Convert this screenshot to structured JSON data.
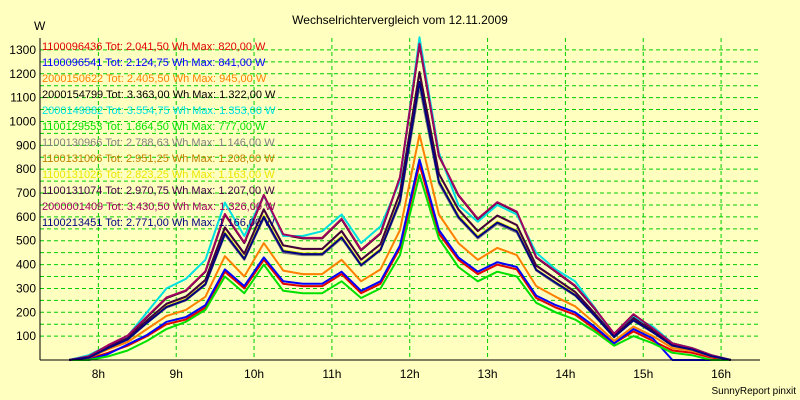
{
  "chart_data": {
    "type": "line",
    "title": "Wechselrichtervergleich vom 12.11.2009",
    "ylabel": "W",
    "ylim": [
      0,
      1350
    ],
    "xlim": [
      7.25,
      16.5
    ],
    "yticks": [
      100,
      150,
      200,
      250,
      300,
      350,
      400,
      450,
      500,
      550,
      600,
      650,
      700,
      750,
      800,
      850,
      900,
      950,
      1000,
      1050,
      1100,
      1150,
      1200,
      1250,
      1300
    ],
    "xticks": [
      {
        "value": 8,
        "label": "8h"
      },
      {
        "value": 9,
        "label": "9h"
      },
      {
        "value": 10,
        "label": "10h"
      },
      {
        "value": 11,
        "label": "11h"
      },
      {
        "value": 12,
        "label": "12h"
      },
      {
        "value": 13,
        "label": "13h"
      },
      {
        "value": 14,
        "label": "14h"
      },
      {
        "value": 15,
        "label": "15h"
      },
      {
        "value": 16,
        "label": "16h"
      }
    ],
    "grid": true,
    "legend_position": "top-left",
    "background_color": "#ffffc0",
    "grid_color": "#00cc00",
    "x": [
      7.625,
      7.875,
      8.125,
      8.375,
      8.625,
      8.875,
      9.125,
      9.375,
      9.625,
      9.875,
      10.125,
      10.375,
      10.625,
      10.875,
      11.125,
      11.375,
      11.625,
      11.875,
      12.125,
      12.375,
      12.625,
      12.875,
      13.125,
      13.375,
      13.625,
      13.875,
      14.125,
      14.375,
      14.625,
      14.875,
      15.125,
      15.375,
      15.625,
      15.875,
      16.125
    ],
    "series": [
      {
        "name": "1100096436 Tot: 2.041,50 Wh Max: 820,00 W",
        "color": "#e00000",
        "values": [
          0,
          5,
          30,
          60,
          100,
          150,
          170,
          220,
          370,
          300,
          420,
          320,
          310,
          310,
          360,
          280,
          320,
          470,
          820,
          530,
          420,
          360,
          400,
          380,
          260,
          220,
          190,
          130,
          70,
          120,
          80,
          40,
          30,
          10,
          0
        ]
      },
      {
        "name": "1100096541 Tot: 2.124,75 Wh Max: 841,00 W",
        "color": "#0000ff",
        "values": [
          0,
          0,
          25,
          65,
          105,
          160,
          180,
          230,
          380,
          310,
          430,
          330,
          320,
          320,
          370,
          290,
          330,
          480,
          841,
          545,
          430,
          370,
          410,
          390,
          270,
          230,
          200,
          140,
          70,
          130,
          90,
          0,
          0,
          0,
          0
        ]
      },
      {
        "name": "2000150622 Tot: 2.405,50 Wh Max: 945,00 W",
        "color": "#ff8000",
        "values": [
          0,
          10,
          45,
          75,
          130,
          185,
          210,
          265,
          435,
          350,
          490,
          375,
          360,
          360,
          420,
          330,
          380,
          545,
          945,
          610,
          490,
          420,
          470,
          440,
          310,
          265,
          225,
          155,
          80,
          140,
          100,
          50,
          40,
          15,
          0
        ]
      },
      {
        "name": "2000154799 Tot: 3.363,00 Wh Max: 1.322,00 W",
        "color": "#000000",
        "values": [
          0,
          15,
          60,
          100,
          180,
          260,
          290,
          370,
          610,
          490,
          690,
          525,
          510,
          510,
          590,
          460,
          530,
          765,
          1322,
          855,
          690,
          590,
          660,
          620,
          430,
          370,
          310,
          215,
          110,
          190,
          130,
          70,
          50,
          20,
          0
        ]
      },
      {
        "name": "2000149882 Tot: 3.554,75 Wh Max: 1.353,00 W",
        "color": "#00e0e0",
        "values": [
          0,
          20,
          60,
          100,
          200,
          300,
          340,
          420,
          660,
          520,
          690,
          520,
          520,
          540,
          610,
          490,
          560,
          750,
          1353,
          870,
          650,
          580,
          650,
          610,
          450,
          380,
          330,
          220,
          100,
          180,
          140,
          70,
          50,
          20,
          0
        ]
      },
      {
        "name": "1100129553 Tot: 1.864,50 Wh Max: 777,00 W",
        "color": "#00e000",
        "values": [
          0,
          0,
          15,
          40,
          80,
          130,
          160,
          210,
          350,
          280,
          400,
          290,
          280,
          280,
          330,
          260,
          300,
          440,
          777,
          510,
          390,
          330,
          370,
          350,
          240,
          200,
          170,
          120,
          60,
          100,
          70,
          30,
          20,
          0,
          0
        ]
      },
      {
        "name": "1100130966 Tot: 2.788,63 Wh Max: 1.146,00 W",
        "color": "#808080",
        "values": [
          0,
          10,
          50,
          85,
          155,
          220,
          250,
          315,
          525,
          420,
          595,
          450,
          440,
          440,
          510,
          395,
          460,
          660,
          1146,
          740,
          595,
          510,
          570,
          535,
          375,
          320,
          270,
          185,
          95,
          165,
          115,
          60,
          45,
          15,
          0
        ]
      },
      {
        "name": "1100131006 Tot: 2.951,25 Wh Max: 1.208,00 W",
        "color": "#c08000",
        "values": [
          0,
          12,
          55,
          90,
          165,
          235,
          265,
          335,
          555,
          445,
          630,
          480,
          465,
          465,
          540,
          420,
          485,
          700,
          1208,
          780,
          630,
          540,
          605,
          565,
          395,
          340,
          285,
          195,
          100,
          175,
          120,
          62,
          47,
          17,
          0
        ]
      },
      {
        "name": "1100131026 Tot: 2.823,25 Wh Max: 1.163,00 W",
        "color": "#e8e800",
        "values": [
          0,
          11,
          52,
          87,
          158,
          225,
          255,
          320,
          535,
          428,
          605,
          460,
          447,
          447,
          518,
          402,
          466,
          672,
          1163,
          752,
          605,
          518,
          580,
          543,
          380,
          326,
          274,
          188,
          96,
          168,
          117,
          60,
          45,
          16,
          0
        ]
      },
      {
        "name": "1100131074 Tot: 2.970,75 Wh Max: 1.207,00 W",
        "color": "#400040",
        "values": [
          0,
          12,
          56,
          91,
          166,
          236,
          266,
          336,
          556,
          446,
          632,
          481,
          466,
          466,
          541,
          421,
          486,
          701,
          1207,
          781,
          632,
          541,
          606,
          566,
          396,
          341,
          286,
          196,
          100,
          176,
          121,
          62,
          47,
          17,
          0
        ]
      },
      {
        "name": "2000001409 Tot: 3.430,50 Wh Max: 1.326,00 W",
        "color": "#a00060",
        "values": [
          0,
          15,
          62,
          102,
          182,
          262,
          292,
          372,
          612,
          492,
          692,
          527,
          512,
          512,
          592,
          462,
          532,
          767,
          1326,
          857,
          692,
          592,
          662,
          622,
          432,
          372,
          312,
          217,
          110,
          192,
          132,
          70,
          50,
          20,
          0
        ]
      },
      {
        "name": "1100213451 Tot: 2.771,00 Wh Max: 1.166,00 W",
        "color": "#000080",
        "values": [
          0,
          10,
          50,
          86,
          156,
          222,
          252,
          318,
          530,
          424,
          600,
          456,
          444,
          444,
          514,
          398,
          462,
          668,
          1166,
          748,
          600,
          514,
          576,
          540,
          378,
          324,
          272,
          186,
          96,
          166,
          116,
          60,
          44,
          16,
          0
        ]
      }
    ]
  },
  "footer": {
    "credit": "SunnyReport pinxit"
  }
}
